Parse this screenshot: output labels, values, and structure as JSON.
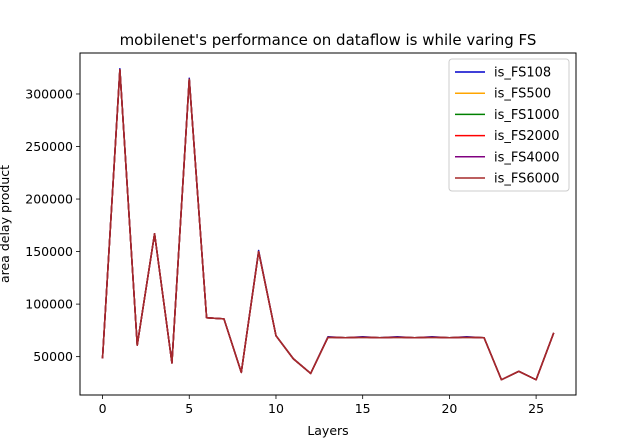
{
  "chart_data": {
    "type": "line",
    "title": "mobilenet's performance on dataflow is while varing FS",
    "xlabel": "Layers",
    "ylabel": "area delay product",
    "xlim": [
      -1.3,
      27.3
    ],
    "ylim": [
      13500,
      339000
    ],
    "xticks": [
      0,
      5,
      10,
      15,
      20,
      25
    ],
    "yticks": [
      50000,
      100000,
      150000,
      200000,
      250000,
      300000
    ],
    "ytick_labels": [
      "50000",
      "100000",
      "150000",
      "200000",
      "250000",
      "300000"
    ],
    "xtick_labels": [
      "0",
      "5",
      "10",
      "15",
      "20",
      "25"
    ],
    "grid": false,
    "legend_position": "top-right",
    "x": [
      0,
      1,
      2,
      3,
      4,
      5,
      6,
      7,
      8,
      9,
      10,
      11,
      12,
      13,
      14,
      15,
      16,
      17,
      18,
      19,
      20,
      21,
      22,
      23,
      24,
      25,
      26
    ],
    "series": [
      {
        "name": "is_FS108",
        "color": "#0000cc",
        "values": [
          49000,
          324000,
          61000,
          167000,
          44000,
          315000,
          87000,
          86000,
          35000,
          151000,
          70000,
          48000,
          34000,
          69000,
          68000,
          69000,
          68000,
          69000,
          68000,
          69000,
          68000,
          69000,
          68000,
          28000,
          36000,
          28000,
          72000
        ]
      },
      {
        "name": "is_FS500",
        "color": "#ffa500",
        "values": [
          49000,
          323000,
          61000,
          167000,
          44000,
          314000,
          87000,
          86000,
          35000,
          150000,
          70000,
          48000,
          34000,
          68500,
          68000,
          68500,
          68000,
          68500,
          68000,
          68500,
          68000,
          68500,
          68000,
          28000,
          36000,
          28000,
          72000
        ]
      },
      {
        "name": "is_FS1000",
        "color": "#008000",
        "values": [
          49000,
          323000,
          61000,
          167000,
          44000,
          314000,
          87000,
          86000,
          35000,
          150000,
          70000,
          48000,
          34000,
          68500,
          68000,
          68500,
          68000,
          68500,
          68000,
          68500,
          68000,
          68500,
          68000,
          28000,
          36000,
          28000,
          72000
        ]
      },
      {
        "name": "is_FS2000",
        "color": "#ff0000",
        "values": [
          49000,
          323000,
          61000,
          167000,
          44000,
          314000,
          87000,
          86000,
          35000,
          150000,
          70000,
          48000,
          34000,
          68500,
          68000,
          68500,
          68000,
          68500,
          68000,
          68500,
          68000,
          68500,
          68000,
          28000,
          36000,
          28000,
          72000
        ]
      },
      {
        "name": "is_FS4000",
        "color": "#800080",
        "values": [
          49000,
          323000,
          61000,
          167000,
          44000,
          314000,
          87000,
          86000,
          35000,
          150000,
          70000,
          48000,
          34000,
          68500,
          68000,
          68500,
          68000,
          68500,
          68000,
          68500,
          68000,
          68500,
          68000,
          28000,
          36000,
          28000,
          72000
        ]
      },
      {
        "name": "is_FS6000",
        "color": "#a52a2a",
        "values": [
          49000,
          323000,
          61000,
          167000,
          44000,
          314000,
          87000,
          86000,
          35000,
          150000,
          70000,
          48000,
          34000,
          68500,
          68000,
          68500,
          68000,
          68500,
          68000,
          68500,
          68000,
          68500,
          68000,
          28000,
          36000,
          28000,
          72000
        ]
      }
    ]
  }
}
